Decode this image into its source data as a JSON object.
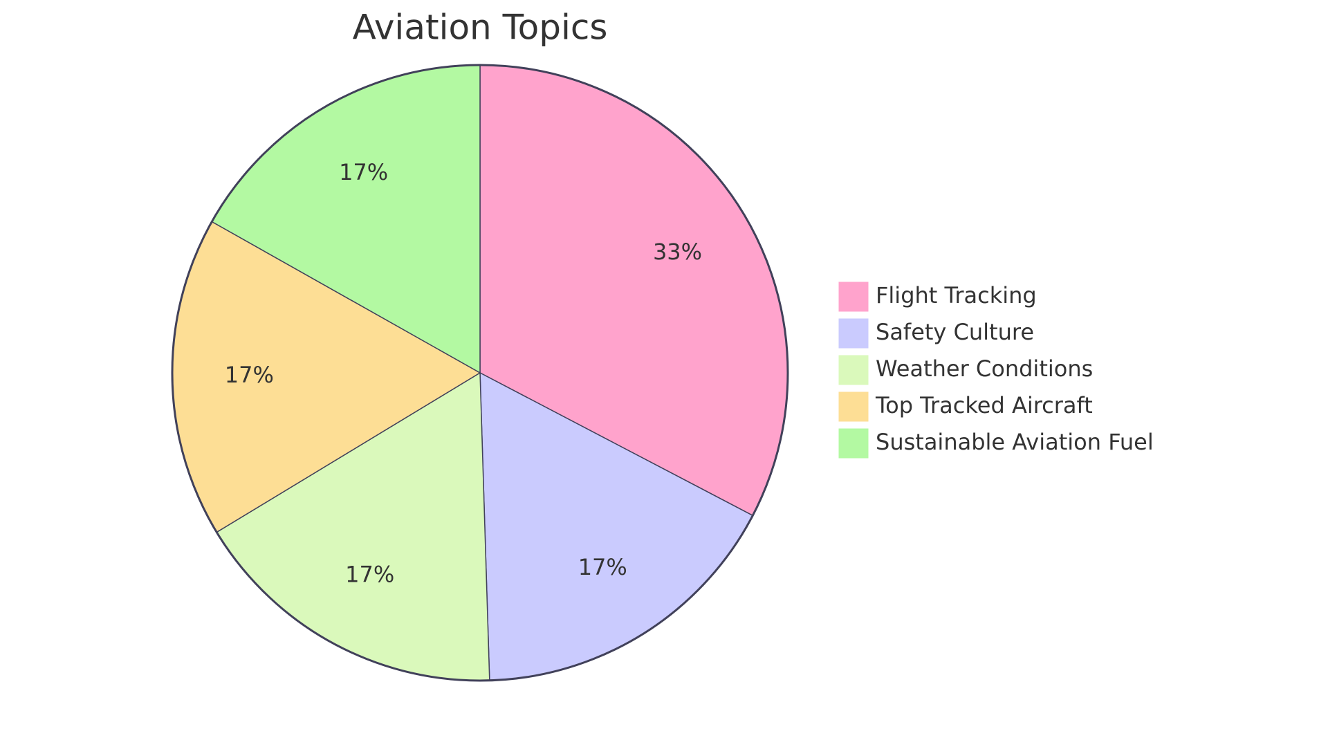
{
  "chart_data": {
    "type": "pie",
    "title": "Aviation Topics",
    "categories": [
      "Flight Tracking",
      "Safety Culture",
      "Weather Conditions",
      "Top Tracked Aircraft",
      "Sustainable Aviation Fuel"
    ],
    "values": [
      33,
      17,
      17,
      17,
      17
    ],
    "value_labels": [
      "33%",
      "17%",
      "17%",
      "17%",
      "17%"
    ],
    "colors": [
      "#ffa3cc",
      "#cacbfe",
      "#daf9bb",
      "#fdde95",
      "#b3f9a2"
    ],
    "legend": "right"
  }
}
